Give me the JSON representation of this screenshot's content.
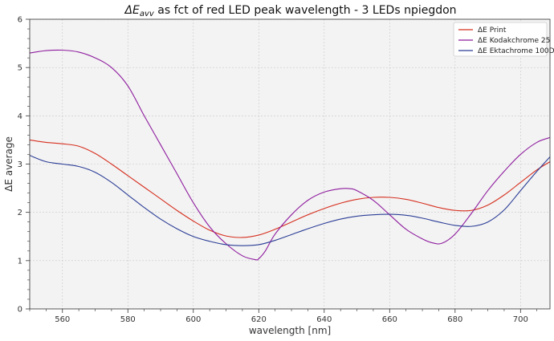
{
  "chart_data": {
    "type": "line",
    "title_prefix": "ΔE",
    "title_subscript": "avv",
    "title_rest": " as fct of red LED peak wavelength - 3 LEDs npiegdon",
    "xlabel": "wavelength [nm]",
    "ylabel": "ΔE average",
    "xlim": [
      550,
      709
    ],
    "ylim": [
      0,
      6
    ],
    "xticks": [
      560,
      580,
      600,
      620,
      640,
      660,
      680,
      700
    ],
    "yticks": [
      0,
      1,
      2,
      3,
      4,
      5,
      6
    ],
    "grid": true,
    "legend_position": "top-right",
    "series": [
      {
        "name": "ΔE Print",
        "color": "#d62f1f",
        "x": [
          550,
          555,
          560,
          565,
          570,
          575,
          580,
          585,
          590,
          595,
          600,
          605,
          610,
          615,
          620,
          625,
          630,
          635,
          640,
          645,
          650,
          655,
          660,
          665,
          670,
          675,
          680,
          685,
          690,
          695,
          700,
          705,
          709
        ],
        "y": [
          3.5,
          3.45,
          3.42,
          3.37,
          3.22,
          3.0,
          2.76,
          2.52,
          2.28,
          2.04,
          1.82,
          1.63,
          1.51,
          1.48,
          1.53,
          1.65,
          1.8,
          1.95,
          2.08,
          2.19,
          2.27,
          2.31,
          2.31,
          2.27,
          2.19,
          2.1,
          2.04,
          2.04,
          2.15,
          2.36,
          2.62,
          2.88,
          3.05
        ]
      },
      {
        "name": "ΔE Kodakchrome 25",
        "color": "#8e1c9e",
        "x": [
          550,
          555,
          560,
          565,
          570,
          575,
          580,
          585,
          590,
          595,
          600,
          605,
          610,
          615,
          619,
          620,
          622,
          625,
          630,
          635,
          640,
          645,
          648,
          650,
          655,
          660,
          665,
          670,
          673,
          676,
          680,
          685,
          690,
          695,
          700,
          705,
          709
        ],
        "y": [
          5.3,
          5.35,
          5.36,
          5.32,
          5.2,
          5.0,
          4.62,
          4.0,
          3.4,
          2.8,
          2.2,
          1.7,
          1.35,
          1.1,
          1.02,
          1.04,
          1.2,
          1.55,
          1.95,
          2.25,
          2.42,
          2.49,
          2.49,
          2.45,
          2.25,
          1.95,
          1.65,
          1.45,
          1.37,
          1.36,
          1.55,
          1.98,
          2.45,
          2.85,
          3.2,
          3.45,
          3.55
        ]
      },
      {
        "name": "ΔE Ektachrome 100D",
        "color": "#2b3d96",
        "x": [
          550,
          555,
          560,
          565,
          570,
          575,
          580,
          585,
          590,
          595,
          600,
          605,
          610,
          615,
          620,
          625,
          630,
          635,
          640,
          645,
          650,
          655,
          660,
          665,
          670,
          675,
          680,
          685,
          690,
          695,
          700,
          705,
          709
        ],
        "y": [
          3.18,
          3.05,
          3.0,
          2.95,
          2.83,
          2.62,
          2.36,
          2.1,
          1.86,
          1.66,
          1.5,
          1.4,
          1.33,
          1.31,
          1.33,
          1.42,
          1.54,
          1.66,
          1.77,
          1.86,
          1.92,
          1.95,
          1.96,
          1.94,
          1.88,
          1.8,
          1.73,
          1.71,
          1.8,
          2.05,
          2.45,
          2.85,
          3.15
        ]
      }
    ]
  }
}
